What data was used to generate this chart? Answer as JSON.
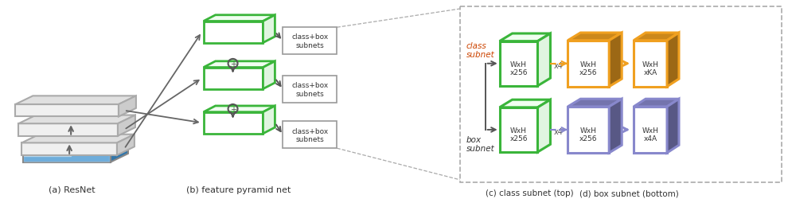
{
  "fig_width": 9.9,
  "fig_height": 2.51,
  "dpi": 100,
  "bg_color": "#ffffff",
  "green": "#3ab53a",
  "orange": "#f0a020",
  "purple": "#8888cc",
  "gray_edge": "#999999",
  "dark": "#444444",
  "label_a": "(a) ResNet",
  "label_b": "(b) feature pyramid net",
  "label_c": "(c) class subnet (top)",
  "label_d": "(d) box subnet (bottom)",
  "class_subnet_lbl": "class\nsubnet",
  "box_subnet_lbl": "box\nsubnet",
  "wxh256": "WxH\nx256",
  "x4": "x4",
  "wxhka": "WxH\nxKA",
  "wxh4a": "WxH\nx4A",
  "classbox": "class+box\nsubnets"
}
